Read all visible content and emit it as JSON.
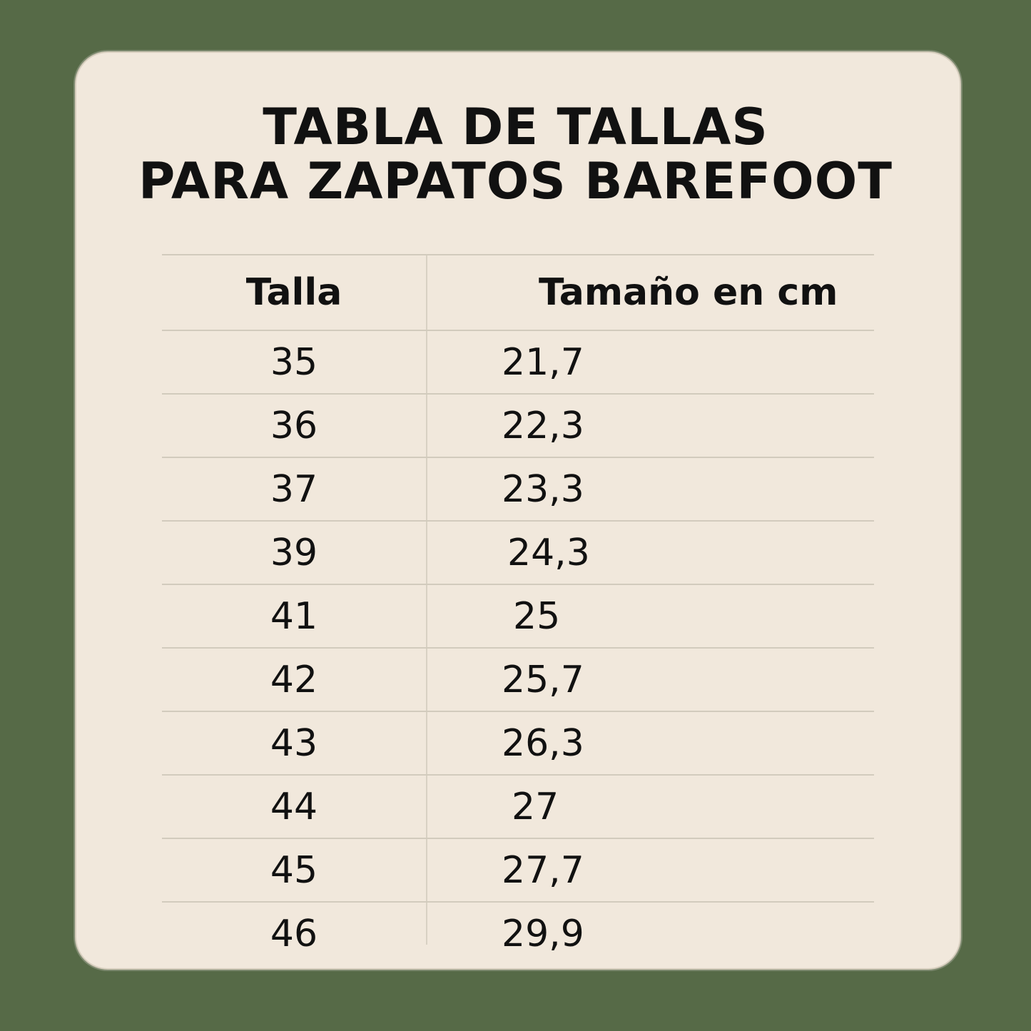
{
  "title": {
    "line1": "TABLA DE TALLAS",
    "line2": "PARA ZAPATOS BAREFOOT"
  },
  "table": {
    "headers": [
      "Talla",
      "Tamaño en cm"
    ],
    "rows": [
      [
        "35",
        "21,7"
      ],
      [
        "36",
        "22,3"
      ],
      [
        "37",
        "23,3"
      ],
      [
        "39",
        "24,3"
      ],
      [
        "41",
        "25"
      ],
      [
        "42",
        "25,7"
      ],
      [
        "43",
        "26,3"
      ],
      [
        "44",
        "27"
      ],
      [
        "45",
        "27,7"
      ],
      [
        "46",
        "29,9"
      ]
    ]
  },
  "colors": {
    "background": "#566a47",
    "card": "#f1e8dc",
    "text": "#111111"
  }
}
